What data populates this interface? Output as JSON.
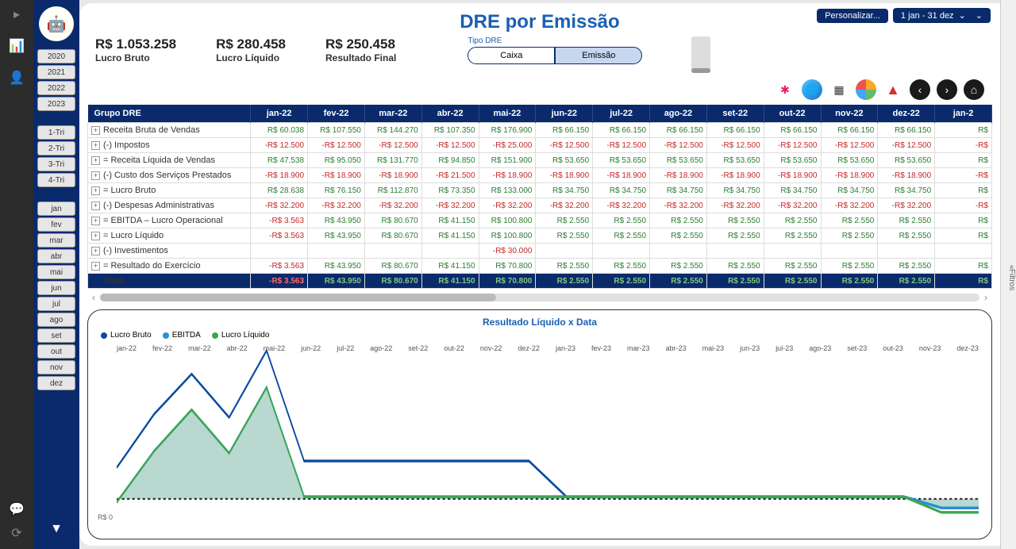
{
  "title": "DRE por Emissão",
  "top_right": {
    "personalize": "Personalizar...",
    "date_range": "1 jan - 31 dez",
    "chevron": "⌄"
  },
  "kpis": [
    {
      "value": "R$ 1.053.258",
      "label": "Lucro Bruto"
    },
    {
      "value": "R$ 280.458",
      "label": "Lucro Líquido"
    },
    {
      "value": "R$ 250.458",
      "label": "Resultado Final"
    }
  ],
  "tipo_dre": {
    "label": "Tipo DRE",
    "options": [
      "Caixa",
      "Emissão"
    ],
    "selected": 1
  },
  "sidebar": {
    "years": [
      "2020",
      "2021",
      "2022",
      "2023"
    ],
    "quarters": [
      "1-Tri",
      "2-Tri",
      "3-Tri",
      "4-Tri"
    ],
    "months": [
      "jan",
      "fev",
      "mar",
      "abr",
      "mai",
      "jun",
      "jul",
      "ago",
      "set",
      "out",
      "nov",
      "dez"
    ]
  },
  "right_strip_label": "Filtros",
  "table": {
    "header": [
      "Grupo DRE",
      "jan-22",
      "fev-22",
      "mar-22",
      "abr-22",
      "mai-22",
      "jun-22",
      "jul-22",
      "ago-22",
      "set-22",
      "out-22",
      "nov-22",
      "dez-22",
      "jan-2"
    ],
    "rows": [
      {
        "label": "Receita Bruta de Vendas",
        "vals": [
          "R$ 60.038",
          "R$ 107.550",
          "R$ 144.270",
          "R$ 107.350",
          "R$ 176.900",
          "R$ 66.150",
          "R$ 66.150",
          "R$ 66.150",
          "R$ 66.150",
          "R$ 66.150",
          "R$ 66.150",
          "R$ 66.150",
          "R$"
        ],
        "neg": false
      },
      {
        "label": "(-) Impostos",
        "vals": [
          "-R$ 12.500",
          "-R$ 12.500",
          "-R$ 12.500",
          "-R$ 12.500",
          "-R$ 25.000",
          "-R$ 12.500",
          "-R$ 12.500",
          "-R$ 12.500",
          "-R$ 12.500",
          "-R$ 12.500",
          "-R$ 12.500",
          "-R$ 12.500",
          "-R$"
        ],
        "neg": true
      },
      {
        "label": "= Receita Líquida de Vendas",
        "vals": [
          "R$ 47.538",
          "R$ 95.050",
          "R$ 131.770",
          "R$ 94.850",
          "R$ 151.900",
          "R$ 53.650",
          "R$ 53.650",
          "R$ 53.650",
          "R$ 53.650",
          "R$ 53.650",
          "R$ 53.650",
          "R$ 53.650",
          "R$"
        ],
        "neg": false
      },
      {
        "label": "(-) Custo dos Serviços Prestados",
        "vals": [
          "-R$ 18.900",
          "-R$ 18.900",
          "-R$ 18.900",
          "-R$ 21.500",
          "-R$ 18.900",
          "-R$ 18.900",
          "-R$ 18.900",
          "-R$ 18.900",
          "-R$ 18.900",
          "-R$ 18.900",
          "-R$ 18.900",
          "-R$ 18.900",
          "-R$"
        ],
        "neg": true
      },
      {
        "label": "= Lucro Bruto",
        "vals": [
          "R$ 28.638",
          "R$ 76.150",
          "R$ 112.870",
          "R$ 73.350",
          "R$ 133.000",
          "R$ 34.750",
          "R$ 34.750",
          "R$ 34.750",
          "R$ 34.750",
          "R$ 34.750",
          "R$ 34.750",
          "R$ 34.750",
          "R$"
        ],
        "neg": false
      },
      {
        "label": "(-) Despesas Administrativas",
        "vals": [
          "-R$ 32.200",
          "-R$ 32.200",
          "-R$ 32.200",
          "-R$ 32.200",
          "-R$ 32.200",
          "-R$ 32.200",
          "-R$ 32.200",
          "-R$ 32.200",
          "-R$ 32.200",
          "-R$ 32.200",
          "-R$ 32.200",
          "-R$ 32.200",
          "-R$"
        ],
        "neg": true
      },
      {
        "label": "= EBITDA – Lucro Operacional",
        "vals": [
          "-R$ 3.563",
          "R$ 43.950",
          "R$ 80.670",
          "R$ 41.150",
          "R$ 100.800",
          "R$ 2.550",
          "R$ 2.550",
          "R$ 2.550",
          "R$ 2.550",
          "R$ 2.550",
          "R$ 2.550",
          "R$ 2.550",
          "R$"
        ],
        "neg": false,
        "first_neg": true
      },
      {
        "label": "= Lucro Líquido",
        "vals": [
          "-R$ 3.563",
          "R$ 43.950",
          "R$ 80.670",
          "R$ 41.150",
          "R$ 100.800",
          "R$ 2.550",
          "R$ 2.550",
          "R$ 2.550",
          "R$ 2.550",
          "R$ 2.550",
          "R$ 2.550",
          "R$ 2.550",
          "R$"
        ],
        "neg": false,
        "first_neg": true
      },
      {
        "label": "(-) Investimentos",
        "vals": [
          "",
          "",
          "",
          "",
          "-R$ 30.000",
          "",
          "",
          "",
          "",
          "",
          "",
          "",
          ""
        ],
        "neg": true
      },
      {
        "label": "= Resultado do Exercício",
        "vals": [
          "-R$ 3.563",
          "R$ 43.950",
          "R$ 80.670",
          "R$ 41.150",
          "R$ 70.800",
          "R$ 2.550",
          "R$ 2.550",
          "R$ 2.550",
          "R$ 2.550",
          "R$ 2.550",
          "R$ 2.550",
          "R$ 2.550",
          "R$"
        ],
        "neg": false,
        "first_neg": true
      }
    ],
    "total": {
      "label": "Total",
      "vals": [
        "-R$ 3.563",
        "R$ 43.950",
        "R$ 80.670",
        "R$ 41.150",
        "R$ 70.800",
        "R$ 2.550",
        "R$ 2.550",
        "R$ 2.550",
        "R$ 2.550",
        "R$ 2.550",
        "R$ 2.550",
        "R$ 2.550",
        "R$"
      ],
      "first_neg": true
    }
  },
  "chart": {
    "title": "Resultado Líquido x Data",
    "legend": [
      {
        "label": "Lucro Bruto",
        "color": "#0b4aa2"
      },
      {
        "label": "EBITDA",
        "color": "#2a8fd4"
      },
      {
        "label": "Lucro Líquido",
        "color": "#3aa655"
      }
    ],
    "y_label": "R$ 0",
    "x_labels": [
      "jan-22",
      "fev-22",
      "mar-22",
      "abr-22",
      "mai-22",
      "jun-22",
      "jul-22",
      "ago-22",
      "set-22",
      "out-22",
      "nov-22",
      "dez-22",
      "jan-23",
      "fev-23",
      "mar-23",
      "abr-23",
      "mai-23",
      "jun-23",
      "jul-23",
      "ago-23",
      "set-23",
      "out-23",
      "nov-23",
      "dez-23"
    ],
    "series": {
      "lucro_bruto": [
        28,
        76,
        112,
        73,
        133,
        34,
        34,
        34,
        34,
        34,
        34,
        34,
        2,
        2,
        2,
        2,
        2,
        2,
        2,
        2,
        2,
        2,
        -8,
        -8
      ],
      "ebitda": [
        -3,
        43,
        80,
        41,
        100,
        2,
        2,
        2,
        2,
        2,
        2,
        2,
        2,
        2,
        2,
        2,
        2,
        2,
        2,
        2,
        2,
        2,
        -8,
        -8
      ],
      "lucro_liq": [
        -3,
        43,
        80,
        41,
        100,
        2,
        2,
        2,
        2,
        2,
        2,
        2,
        2,
        2,
        2,
        2,
        2,
        2,
        2,
        2,
        2,
        2,
        -12,
        -12
      ]
    },
    "ylim": [
      -20,
      140
    ],
    "area_fill": "#7fb8a8",
    "colors": {
      "bg": "#ffffff",
      "grid": "#333"
    }
  }
}
